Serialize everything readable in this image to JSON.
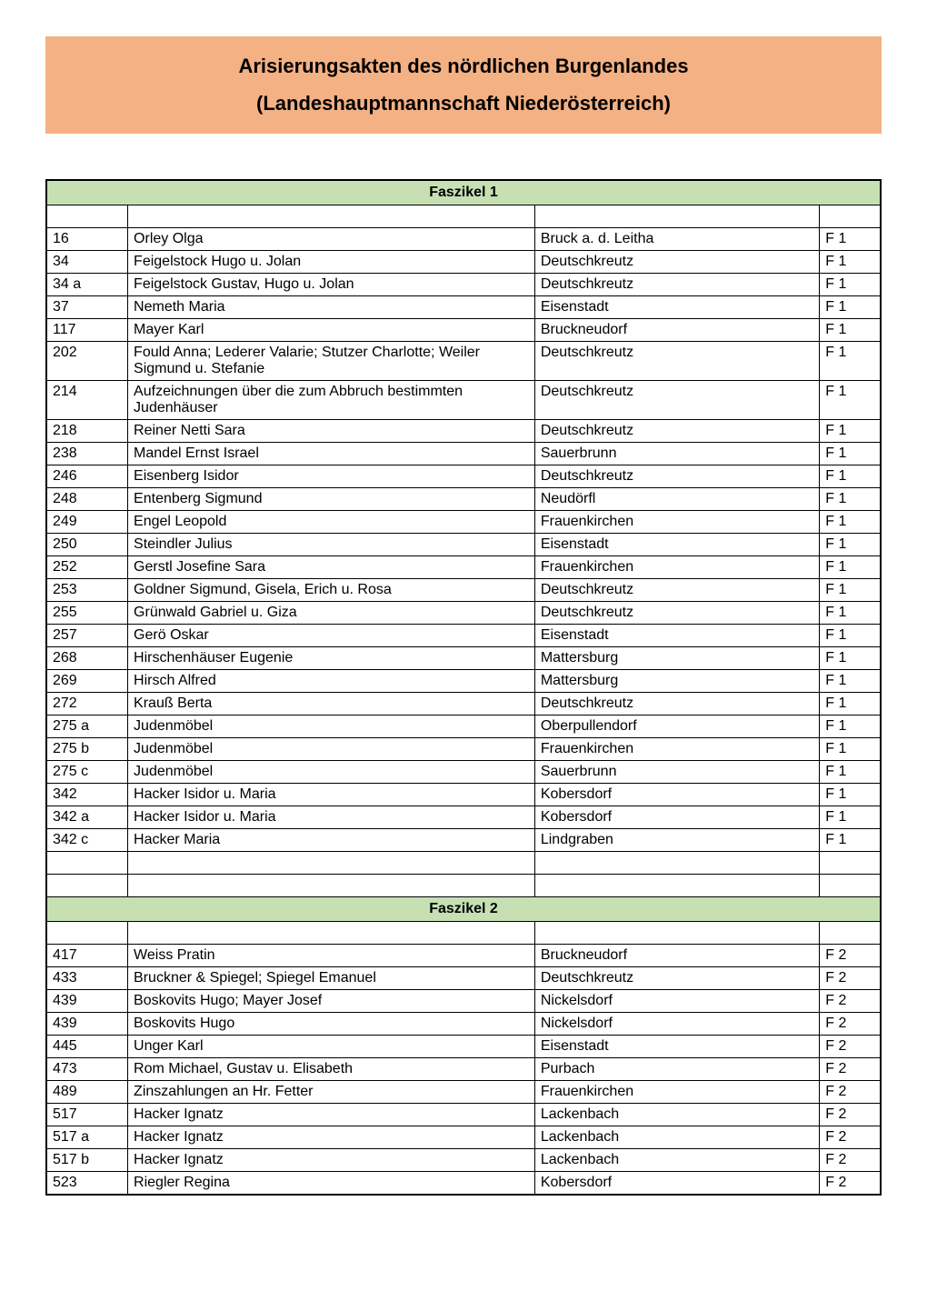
{
  "header": {
    "title": "Arisierungsakten des nördlichen Burgenlandes",
    "subtitle": "(Landeshauptmannschaft Niederösterreich)"
  },
  "colors": {
    "header_bg": "#f4b183",
    "section_bg": "#c6e0b4",
    "border": "#000000",
    "text": "#000000",
    "page_bg": "#ffffff"
  },
  "sections": [
    {
      "title": "Faszikel 1",
      "rows": [
        {
          "id": "16",
          "name": "Orley Olga",
          "location": "Bruck a. d. Leitha",
          "ref": "F 1"
        },
        {
          "id": "34",
          "name": "Feigelstock Hugo u. Jolan",
          "location": "Deutschkreutz",
          "ref": "F 1"
        },
        {
          "id": "34 a",
          "name": "Feigelstock Gustav, Hugo u. Jolan",
          "location": "Deutschkreutz",
          "ref": "F 1"
        },
        {
          "id": "37",
          "name": "Nemeth Maria",
          "location": "Eisenstadt",
          "ref": "F 1"
        },
        {
          "id": "117",
          "name": "Mayer Karl",
          "location": "Bruckneudorf",
          "ref": "F 1"
        },
        {
          "id": "202",
          "name": "Fould Anna; Lederer Valarie; Stutzer Charlotte; Weiler Sigmund u. Stefanie",
          "location": "Deutschkreutz",
          "ref": "F 1"
        },
        {
          "id": "214",
          "name": "Aufzeichnungen über die zum Abbruch bestimmten Judenhäuser",
          "location": "Deutschkreutz",
          "ref": "F 1"
        },
        {
          "id": "218",
          "name": "Reiner Netti Sara",
          "location": "Deutschkreutz",
          "ref": "F 1"
        },
        {
          "id": "238",
          "name": "Mandel Ernst Israel",
          "location": "Sauerbrunn",
          "ref": "F 1"
        },
        {
          "id": "246",
          "name": "Eisenberg Isidor",
          "location": "Deutschkreutz",
          "ref": "F 1"
        },
        {
          "id": "248",
          "name": "Entenberg Sigmund",
          "location": "Neudörfl",
          "ref": "F 1"
        },
        {
          "id": "249",
          "name": "Engel Leopold",
          "location": "Frauenkirchen",
          "ref": "F 1"
        },
        {
          "id": "250",
          "name": "Steindler Julius",
          "location": "Eisenstadt",
          "ref": "F 1"
        },
        {
          "id": "252",
          "name": "Gerstl Josefine Sara",
          "location": "Frauenkirchen",
          "ref": "F 1"
        },
        {
          "id": "253",
          "name": "Goldner Sigmund, Gisela, Erich u. Rosa",
          "location": "Deutschkreutz",
          "ref": "F 1"
        },
        {
          "id": "255",
          "name": "Grünwald Gabriel u. Giza",
          "location": "Deutschkreutz",
          "ref": "F 1"
        },
        {
          "id": "257",
          "name": "Gerö Oskar",
          "location": "Eisenstadt",
          "ref": "F 1"
        },
        {
          "id": "268",
          "name": "Hirschenhäuser Eugenie",
          "location": "Mattersburg",
          "ref": "F 1"
        },
        {
          "id": "269",
          "name": "Hirsch Alfred",
          "location": "Mattersburg",
          "ref": "F 1"
        },
        {
          "id": "272",
          "name": "Krauß Berta",
          "location": "Deutschkreutz",
          "ref": "F 1"
        },
        {
          "id": "275 a",
          "name": "Judenmöbel",
          "location": "Oberpullendorf",
          "ref": "F 1"
        },
        {
          "id": "275 b",
          "name": "Judenmöbel",
          "location": "Frauenkirchen",
          "ref": "F 1"
        },
        {
          "id": "275 c",
          "name": "Judenmöbel",
          "location": "Sauerbrunn",
          "ref": "F 1"
        },
        {
          "id": "342",
          "name": "Hacker Isidor u. Maria",
          "location": "Kobersdorf",
          "ref": "F 1"
        },
        {
          "id": "342 a",
          "name": "Hacker Isidor u. Maria",
          "location": "Kobersdorf",
          "ref": "F 1"
        },
        {
          "id": "342 c",
          "name": "Hacker Maria",
          "location": "Lindgraben",
          "ref": "F 1"
        },
        {
          "id": "",
          "name": "",
          "location": "",
          "ref": ""
        },
        {
          "id": "",
          "name": "",
          "location": "",
          "ref": ""
        }
      ]
    },
    {
      "title": "Faszikel 2",
      "rows": [
        {
          "id": "417",
          "name": "Weiss Pratin",
          "location": "Bruckneudorf",
          "ref": "F 2"
        },
        {
          "id": "433",
          "name": "Bruckner & Spiegel; Spiegel Emanuel",
          "location": "Deutschkreutz",
          "ref": "F 2"
        },
        {
          "id": "439",
          "name": "Boskovits Hugo; Mayer Josef",
          "location": "Nickelsdorf",
          "ref": "F 2"
        },
        {
          "id": "439",
          "name": "Boskovits Hugo",
          "location": "Nickelsdorf",
          "ref": "F 2"
        },
        {
          "id": "445",
          "name": "Unger Karl",
          "location": "Eisenstadt",
          "ref": "F 2"
        },
        {
          "id": "473",
          "name": "Rom Michael, Gustav u. Elisabeth",
          "location": "Purbach",
          "ref": "F 2"
        },
        {
          "id": "489",
          "name": "Zinszahlungen an Hr. Fetter",
          "location": "Frauenkirchen",
          "ref": "F 2"
        },
        {
          "id": "517",
          "name": "Hacker Ignatz",
          "location": "Lackenbach",
          "ref": "F 2"
        },
        {
          "id": "517 a",
          "name": "Hacker Ignatz",
          "location": "Lackenbach",
          "ref": "F 2"
        },
        {
          "id": "517 b",
          "name": "Hacker Ignatz",
          "location": "Lackenbach",
          "ref": "F 2"
        },
        {
          "id": "523",
          "name": "Riegler Regina",
          "location": "Kobersdorf",
          "ref": "F 2"
        }
      ]
    }
  ]
}
